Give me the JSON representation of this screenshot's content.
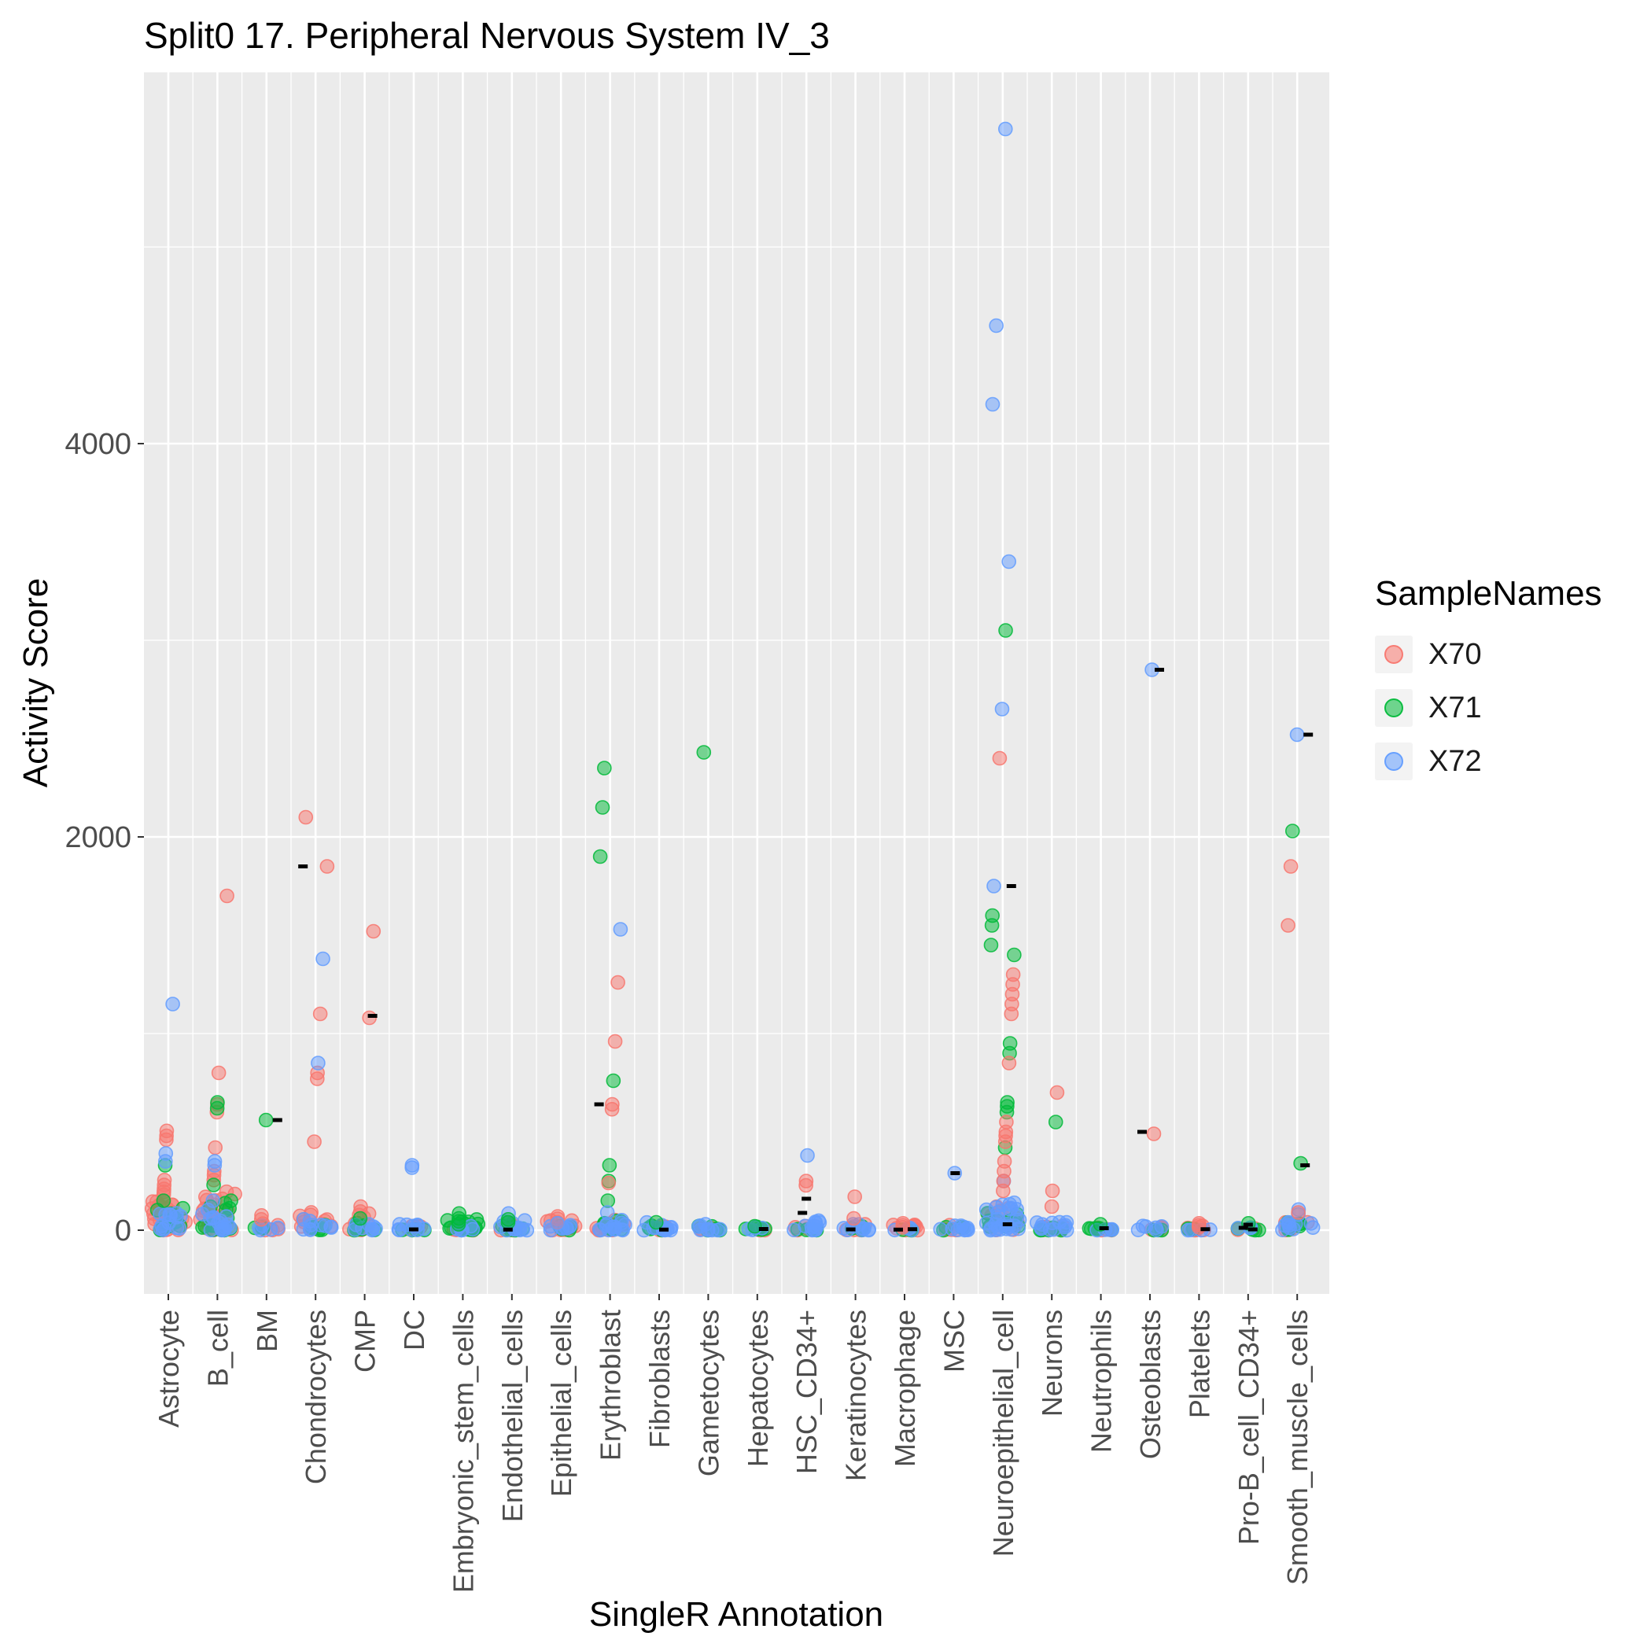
{
  "chart_data": {
    "type": "scatter",
    "title": "Split0 17. Peripheral Nervous System IV_3",
    "xlabel": "SingleR Annotation",
    "ylabel": "Activity Score",
    "ylim": [
      -320,
      5890
    ],
    "yticks": [
      0,
      2000,
      4000
    ],
    "minor_yticks": [
      1000,
      3000,
      5000
    ],
    "grid": true,
    "panel_bg": "#EBEBEB",
    "grid_color": "#FFFFFF",
    "tick_label_color": "#4D4D4D",
    "legend_title": "SampleNames",
    "legend_position": "right",
    "mark_color": "#000000",
    "samples": [
      {
        "name": "X70",
        "color": "#F8766D"
      },
      {
        "name": "X71",
        "color": "#00BA38"
      },
      {
        "name": "X72",
        "color": "#619CFF"
      }
    ],
    "categories": [
      "Astrocyte",
      "B_cell",
      "BM",
      "Chondrocytes",
      "CMP",
      "DC",
      "Embryonic_stem_cells",
      "Endothelial_cells",
      "Epithelial_cells",
      "Erythroblast",
      "Fibroblasts",
      "Gametocytes",
      "Hepatocytes",
      "HSC_CD34+",
      "Keratinocytes",
      "Macrophage",
      "MSC",
      "Neuroepithelial_cell",
      "Neurons",
      "Neutrophils",
      "Osteoblasts",
      "Platelets",
      "Pro-B_cell_CD34+",
      "Smooth_muscle_cells"
    ],
    "points": [
      [
        0,
        0,
        505
      ],
      [
        0,
        0,
        480
      ],
      [
        0,
        0,
        460
      ],
      [
        0,
        0,
        255
      ],
      [
        0,
        0,
        230
      ],
      [
        0,
        0,
        210
      ],
      [
        0,
        0,
        195
      ],
      [
        0,
        0,
        180
      ],
      [
        0,
        1,
        330
      ],
      [
        0,
        1,
        150
      ],
      [
        0,
        2,
        1150
      ],
      [
        0,
        2,
        390
      ],
      [
        0,
        2,
        350
      ],
      [
        1,
        0,
        1700
      ],
      [
        1,
        0,
        800
      ],
      [
        1,
        0,
        640
      ],
      [
        1,
        0,
        600
      ],
      [
        1,
        0,
        420
      ],
      [
        1,
        0,
        300
      ],
      [
        1,
        0,
        280
      ],
      [
        1,
        0,
        255
      ],
      [
        1,
        1,
        650
      ],
      [
        1,
        1,
        620
      ],
      [
        1,
        1,
        230
      ],
      [
        1,
        2,
        350
      ],
      [
        1,
        2,
        330
      ],
      [
        1,
        2,
        150
      ],
      [
        2,
        1,
        560
      ],
      [
        2,
        0,
        75
      ],
      [
        2,
        0,
        55
      ],
      [
        3,
        0,
        2100
      ],
      [
        3,
        0,
        1850
      ],
      [
        3,
        0,
        1100
      ],
      [
        3,
        0,
        800
      ],
      [
        3,
        0,
        770
      ],
      [
        3,
        0,
        450
      ],
      [
        3,
        2,
        1380
      ],
      [
        3,
        2,
        850
      ],
      [
        4,
        0,
        1520
      ],
      [
        4,
        0,
        1080
      ],
      [
        4,
        0,
        120
      ],
      [
        4,
        0,
        95
      ],
      [
        4,
        1,
        60
      ],
      [
        5,
        2,
        330
      ],
      [
        5,
        2,
        318
      ],
      [
        6,
        1,
        85
      ],
      [
        6,
        1,
        60
      ],
      [
        6,
        1,
        45
      ],
      [
        6,
        1,
        30
      ],
      [
        7,
        2,
        85
      ],
      [
        7,
        1,
        55
      ],
      [
        7,
        1,
        40
      ],
      [
        8,
        0,
        70
      ],
      [
        8,
        0,
        58
      ],
      [
        8,
        0,
        40
      ],
      [
        8,
        2,
        35
      ],
      [
        9,
        1,
        2350
      ],
      [
        9,
        1,
        2150
      ],
      [
        9,
        1,
        1900
      ],
      [
        9,
        1,
        760
      ],
      [
        9,
        1,
        330
      ],
      [
        9,
        1,
        250
      ],
      [
        9,
        1,
        150
      ],
      [
        9,
        2,
        1530
      ],
      [
        9,
        2,
        90
      ],
      [
        9,
        0,
        1260
      ],
      [
        9,
        0,
        960
      ],
      [
        9,
        0,
        640
      ],
      [
        9,
        0,
        615
      ],
      [
        9,
        0,
        240
      ],
      [
        10,
        1,
        40
      ],
      [
        11,
        1,
        2430
      ],
      [
        11,
        2,
        30
      ],
      [
        12,
        1,
        20
      ],
      [
        13,
        2,
        380
      ],
      [
        13,
        0,
        250
      ],
      [
        13,
        0,
        228
      ],
      [
        14,
        0,
        170
      ],
      [
        14,
        0,
        60
      ],
      [
        15,
        0,
        35
      ],
      [
        15,
        0,
        25
      ],
      [
        15,
        0,
        15
      ],
      [
        16,
        2,
        290
      ],
      [
        17,
        2,
        5600
      ],
      [
        17,
        2,
        4600
      ],
      [
        17,
        2,
        4200
      ],
      [
        17,
        2,
        3400
      ],
      [
        17,
        2,
        2650
      ],
      [
        17,
        2,
        1750
      ],
      [
        17,
        2,
        250
      ],
      [
        17,
        1,
        3050
      ],
      [
        17,
        1,
        1600
      ],
      [
        17,
        1,
        1550
      ],
      [
        17,
        1,
        1450
      ],
      [
        17,
        1,
        1400
      ],
      [
        17,
        1,
        950
      ],
      [
        17,
        1,
        900
      ],
      [
        17,
        1,
        650
      ],
      [
        17,
        1,
        630
      ],
      [
        17,
        1,
        600
      ],
      [
        17,
        1,
        420
      ],
      [
        17,
        0,
        2400
      ],
      [
        17,
        0,
        1300
      ],
      [
        17,
        0,
        1250
      ],
      [
        17,
        0,
        1200
      ],
      [
        17,
        0,
        1150
      ],
      [
        17,
        0,
        1100
      ],
      [
        17,
        0,
        850
      ],
      [
        17,
        0,
        550
      ],
      [
        17,
        0,
        500
      ],
      [
        17,
        0,
        480
      ],
      [
        17,
        0,
        450
      ],
      [
        17,
        0,
        350
      ],
      [
        17,
        0,
        300
      ],
      [
        17,
        0,
        250
      ],
      [
        17,
        0,
        200
      ],
      [
        18,
        0,
        700
      ],
      [
        18,
        0,
        200
      ],
      [
        18,
        0,
        120
      ],
      [
        18,
        1,
        550
      ],
      [
        19,
        1,
        30
      ],
      [
        20,
        2,
        2850
      ],
      [
        20,
        0,
        490
      ],
      [
        21,
        0,
        35
      ],
      [
        21,
        0,
        25
      ],
      [
        21,
        0,
        15
      ],
      [
        22,
        1,
        35
      ],
      [
        23,
        2,
        2520
      ],
      [
        23,
        2,
        105
      ],
      [
        23,
        2,
        80
      ],
      [
        23,
        1,
        2030
      ],
      [
        23,
        1,
        340
      ],
      [
        23,
        0,
        1850
      ],
      [
        23,
        0,
        1550
      ],
      [
        23,
        0,
        90
      ]
    ],
    "clusters": [
      [
        0,
        0,
        28,
        150
      ],
      [
        0,
        1,
        10,
        120
      ],
      [
        0,
        2,
        14,
        100
      ],
      [
        1,
        0,
        28,
        200
      ],
      [
        1,
        1,
        14,
        150
      ],
      [
        1,
        2,
        16,
        120
      ],
      [
        2,
        0,
        6,
        40
      ],
      [
        2,
        1,
        3,
        30
      ],
      [
        2,
        2,
        5,
        30
      ],
      [
        3,
        0,
        12,
        110
      ],
      [
        3,
        1,
        6,
        50
      ],
      [
        3,
        2,
        10,
        60
      ],
      [
        4,
        0,
        10,
        90
      ],
      [
        4,
        1,
        8,
        60
      ],
      [
        4,
        2,
        8,
        50
      ],
      [
        5,
        0,
        5,
        25
      ],
      [
        5,
        1,
        4,
        20
      ],
      [
        5,
        2,
        10,
        30
      ],
      [
        6,
        0,
        4,
        20
      ],
      [
        6,
        1,
        16,
        55
      ],
      [
        6,
        2,
        6,
        25
      ],
      [
        7,
        0,
        5,
        30
      ],
      [
        7,
        1,
        8,
        40
      ],
      [
        7,
        2,
        12,
        50
      ],
      [
        8,
        0,
        10,
        50
      ],
      [
        8,
        1,
        4,
        25
      ],
      [
        8,
        2,
        8,
        30
      ],
      [
        9,
        0,
        10,
        70
      ],
      [
        9,
        1,
        8,
        60
      ],
      [
        9,
        2,
        14,
        80
      ],
      [
        10,
        0,
        4,
        25
      ],
      [
        10,
        1,
        5,
        30
      ],
      [
        10,
        2,
        14,
        40
      ],
      [
        11,
        0,
        3,
        20
      ],
      [
        11,
        1,
        6,
        25
      ],
      [
        11,
        2,
        8,
        30
      ],
      [
        12,
        0,
        3,
        10
      ],
      [
        12,
        1,
        6,
        20
      ],
      [
        12,
        2,
        4,
        15
      ],
      [
        13,
        0,
        6,
        40
      ],
      [
        13,
        1,
        4,
        25
      ],
      [
        13,
        2,
        12,
        50
      ],
      [
        14,
        0,
        5,
        30
      ],
      [
        14,
        1,
        3,
        20
      ],
      [
        14,
        2,
        10,
        40
      ],
      [
        15,
        0,
        10,
        30
      ],
      [
        15,
        1,
        3,
        10
      ],
      [
        15,
        2,
        4,
        15
      ],
      [
        16,
        0,
        6,
        30
      ],
      [
        16,
        1,
        4,
        20
      ],
      [
        16,
        2,
        10,
        40
      ],
      [
        17,
        0,
        14,
        120
      ],
      [
        17,
        1,
        12,
        100
      ],
      [
        17,
        2,
        28,
        150
      ],
      [
        18,
        0,
        8,
        50
      ],
      [
        18,
        1,
        6,
        40
      ],
      [
        18,
        2,
        12,
        60
      ],
      [
        19,
        0,
        4,
        15
      ],
      [
        19,
        1,
        6,
        25
      ],
      [
        19,
        2,
        5,
        20
      ],
      [
        20,
        0,
        4,
        20
      ],
      [
        20,
        1,
        3,
        15
      ],
      [
        20,
        2,
        6,
        25
      ],
      [
        21,
        0,
        8,
        25
      ],
      [
        21,
        1,
        2,
        10
      ],
      [
        21,
        2,
        4,
        15
      ],
      [
        22,
        0,
        2,
        10
      ],
      [
        22,
        1,
        4,
        20
      ],
      [
        22,
        2,
        3,
        15
      ],
      [
        23,
        0,
        6,
        40
      ],
      [
        23,
        1,
        6,
        40
      ],
      [
        23,
        2,
        10,
        60
      ]
    ],
    "marks": [
      [
        2,
        560,
        14
      ],
      [
        3,
        1850,
        -16
      ],
      [
        4,
        1090,
        10
      ],
      [
        5,
        4,
        0
      ],
      [
        7,
        3,
        -5
      ],
      [
        9,
        640,
        -14
      ],
      [
        10,
        3,
        6
      ],
      [
        12,
        6,
        8
      ],
      [
        13,
        160,
        0
      ],
      [
        13,
        88,
        -5
      ],
      [
        14,
        4,
        -6
      ],
      [
        15,
        5,
        10
      ],
      [
        15,
        3,
        -8
      ],
      [
        16,
        290,
        2
      ],
      [
        17,
        1750,
        11
      ],
      [
        17,
        30,
        6
      ],
      [
        19,
        10,
        4
      ],
      [
        20,
        2850,
        12
      ],
      [
        20,
        500,
        -10
      ],
      [
        21,
        5,
        8
      ],
      [
        22,
        28,
        0
      ],
      [
        22,
        12,
        -6
      ],
      [
        22,
        4,
        6
      ],
      [
        23,
        2520,
        14
      ],
      [
        23,
        330,
        10
      ]
    ]
  }
}
